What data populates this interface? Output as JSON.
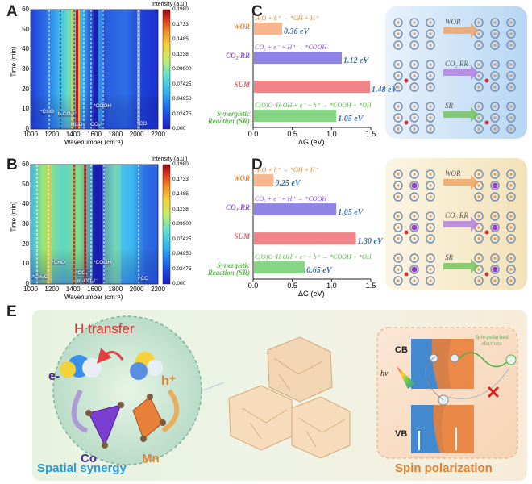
{
  "panel_labels": {
    "A": "A",
    "B": "B",
    "C": "C",
    "D": "D",
    "E": "E"
  },
  "heatmap": {
    "ylabel": "Time (min)",
    "xlabel": "Wavenumber (cm⁻¹)",
    "yticks": [
      "0",
      "10",
      "20",
      "30",
      "40",
      "50",
      "60"
    ],
    "xticks": [
      "1000",
      "1200",
      "1400",
      "1600",
      "1800",
      "2000",
      "2200"
    ],
    "colorbar_title": "Intensity (a.u.)",
    "colorbar_ticks": [
      "0.1980",
      "0.1733",
      "0.1485",
      "0.1238",
      "0.09900",
      "0.07425",
      "0.04950",
      "0.02475",
      "0.000"
    ],
    "colors": {
      "low": "#1a2fd6",
      "mid": "#35c8f0",
      "high": "#b1121a"
    }
  },
  "panelA_annotations": [
    "*CHO",
    "b-CO₃²⁻",
    "*COOH",
    "HCO₃⁻",
    "CO₃²⁻",
    "*CO"
  ],
  "panelB_annotations": [
    "*CH₃O",
    "*CHO",
    "*CO₂⁻",
    "*COOH",
    "m-CO₃²⁻",
    "*CO"
  ],
  "chart_data": [
    {
      "type": "bar",
      "panel": "C",
      "orientation": "horizontal",
      "xlabel": "ΔG (eV)",
      "xlim": [
        0,
        1.5
      ],
      "xticks": [
        "0.0",
        "0.5",
        "1.0",
        "1.5"
      ],
      "categories": [
        "WOR",
        "CO₂ RR",
        "SUM",
        "Synergistic Reaction (SR)"
      ],
      "values": [
        0.36,
        1.12,
        1.48,
        1.05
      ],
      "value_labels": [
        "0.36 eV",
        "1.12 eV",
        "1.48 eV",
        "1.05 eV"
      ],
      "reactions": [
        "H₂O + h⁺ → *OH + H⁺",
        "CO₂ + e⁻ + H⁺ → *COOH",
        "",
        "C(O)O··H-OH + e⁻ + h⁺ → *COOH + *OH"
      ],
      "bar_colors": [
        "#f7a97a",
        "#7b6ee0",
        "#ef6f73",
        "#6fcf6f"
      ],
      "label_colors": [
        "#e0853a",
        "#8a4fd0",
        "#e0605f",
        "#5ab54a"
      ]
    },
    {
      "type": "bar",
      "panel": "D",
      "orientation": "horizontal",
      "xlabel": "ΔG (eV)",
      "xlim": [
        0,
        1.5
      ],
      "xticks": [
        "0.0",
        "0.5",
        "1.0",
        "1.5"
      ],
      "categories": [
        "WOR",
        "CO₂ RR",
        "SUM",
        "Synergistic Reaction (SR)"
      ],
      "values": [
        0.25,
        1.05,
        1.3,
        0.65
      ],
      "value_labels": [
        "0.25 eV",
        "1.05 eV",
        "1.30 eV",
        "0.65 eV"
      ],
      "reactions": [
        "H₂O + h⁺ → *OH + H⁺",
        "CO₂ + e⁻ + H⁺ → *COOH",
        "",
        "C(O)O··H-OH + e⁻ + h⁺ → *COOH + *OH"
      ],
      "bar_colors": [
        "#f7a97a",
        "#7b6ee0",
        "#ef6f73",
        "#6fcf6f"
      ],
      "label_colors": [
        "#e0853a",
        "#8a4fd0",
        "#e0605f",
        "#5ab54a"
      ]
    }
  ],
  "schemes": {
    "arrows": [
      "WOR",
      "CO₂ RR",
      "SR"
    ],
    "arrow_colors": [
      "#f0a060",
      "#b07ae0",
      "#6fc25a"
    ],
    "c_bg": "#cfe4f7",
    "d_bg": "#f7ecd0"
  },
  "panelE": {
    "h_transfer": "H transfer",
    "e_minus": "e-",
    "h_plus": "h⁺",
    "co": "Co",
    "mn": "Mn",
    "spatial_synergy": "Spatial synergy",
    "cb": "CB",
    "vb": "VB",
    "hv": "hv",
    "spin_text": "Spin-polarized electrons",
    "spin_polarization": "Spin polarization"
  }
}
